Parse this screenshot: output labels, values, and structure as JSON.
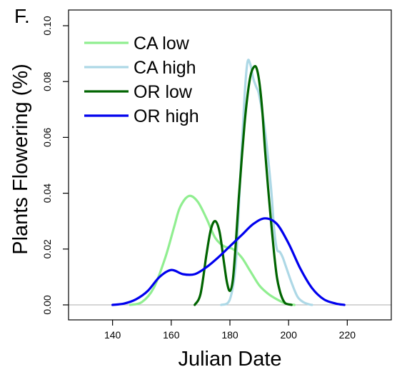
{
  "panel_label": "F.",
  "chart_data": {
    "type": "line",
    "title": "",
    "xlabel": "Julian Date",
    "ylabel": "Plants Flowering (%)",
    "xlim": [
      125,
      235
    ],
    "ylim": [
      0,
      0.1
    ],
    "xticks": [
      {
        "value": 140,
        "label": "140"
      },
      {
        "value": 160,
        "label": "160"
      },
      {
        "value": 180,
        "label": "180"
      },
      {
        "value": 200,
        "label": "200"
      },
      {
        "value": 220,
        "label": "220"
      }
    ],
    "yticks": [
      {
        "value": 0.0,
        "label": "0.00"
      },
      {
        "value": 0.02,
        "label": "0.02"
      },
      {
        "value": 0.04,
        "label": "0.04"
      },
      {
        "value": 0.06,
        "label": "0.06"
      },
      {
        "value": 0.08,
        "label": "0.08"
      },
      {
        "value": 0.1,
        "label": "0.10"
      }
    ],
    "baseline": {
      "y": 0,
      "color": "#bebebe"
    },
    "legend": {
      "position": "top-left"
    },
    "grid": false,
    "series": [
      {
        "name": "CA low",
        "color": "#90ee90",
        "x": [
          146,
          150,
          154,
          158,
          161,
          163,
          166,
          169,
          172,
          175,
          178,
          181,
          184,
          187,
          190,
          193,
          196,
          199,
          202
        ],
        "y": [
          0.0,
          0.001,
          0.006,
          0.017,
          0.028,
          0.035,
          0.039,
          0.037,
          0.031,
          0.024,
          0.021,
          0.02,
          0.017,
          0.012,
          0.007,
          0.004,
          0.002,
          0.0005,
          0.0
        ]
      },
      {
        "name": "CA high",
        "color": "#add8e6",
        "x": [
          177,
          180,
          182,
          183.5,
          185,
          186,
          187,
          188,
          189,
          190,
          192,
          194,
          195,
          196,
          197,
          198,
          199,
          201,
          203,
          205,
          207,
          208
        ],
        "y": [
          0.0,
          0.002,
          0.015,
          0.045,
          0.075,
          0.087,
          0.086,
          0.081,
          0.078,
          0.075,
          0.062,
          0.042,
          0.028,
          0.02,
          0.019,
          0.017,
          0.014,
          0.008,
          0.003,
          0.001,
          0.0002,
          0.0
        ]
      },
      {
        "name": "OR low",
        "color": "#006400",
        "x": [
          168,
          170,
          172,
          173.5,
          175,
          176.5,
          178,
          179,
          180,
          181,
          182,
          183,
          184,
          185,
          186,
          187,
          188,
          189,
          190,
          191,
          192,
          193,
          194,
          195,
          196,
          197,
          198,
          199,
          201
        ],
        "y": [
          0.0,
          0.004,
          0.018,
          0.027,
          0.03,
          0.026,
          0.015,
          0.008,
          0.005,
          0.009,
          0.022,
          0.038,
          0.052,
          0.065,
          0.075,
          0.082,
          0.085,
          0.085,
          0.08,
          0.07,
          0.055,
          0.042,
          0.03,
          0.019,
          0.01,
          0.005,
          0.002,
          0.0005,
          0.0
        ]
      },
      {
        "name": "OR high",
        "color": "#0000ee",
        "x": [
          140,
          144,
          148,
          152,
          156,
          160,
          164,
          168,
          172,
          176,
          180,
          184,
          188,
          192,
          196,
          200,
          204,
          208,
          212,
          216,
          219
        ],
        "y": [
          0.0,
          0.0005,
          0.002,
          0.005,
          0.01,
          0.0125,
          0.011,
          0.011,
          0.0135,
          0.017,
          0.021,
          0.025,
          0.029,
          0.031,
          0.029,
          0.022,
          0.013,
          0.006,
          0.002,
          0.0005,
          0.0
        ]
      }
    ]
  }
}
